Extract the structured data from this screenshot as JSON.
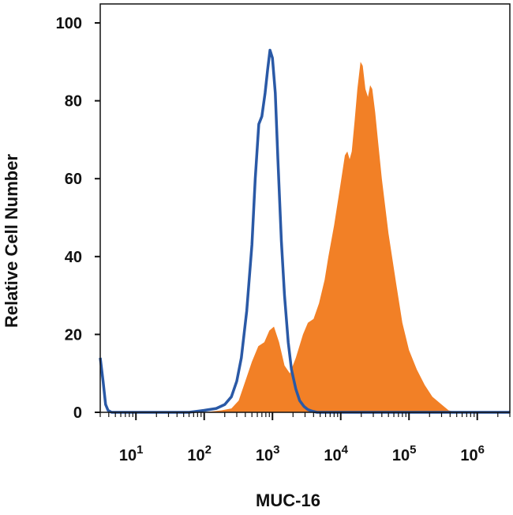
{
  "chart_data": {
    "type": "area",
    "xlabel": "MUC-16",
    "ylabel": "Relative Cell Number",
    "x_scale": "log",
    "xlim": [
      3.0,
      3000000
    ],
    "ylim": [
      0,
      100
    ],
    "x_ticks": [
      {
        "value": 10,
        "base": "10",
        "exp": "1"
      },
      {
        "value": 100,
        "base": "10",
        "exp": "2"
      },
      {
        "value": 1000,
        "base": "10",
        "exp": "3"
      },
      {
        "value": 10000,
        "base": "10",
        "exp": "4"
      },
      {
        "value": 100000,
        "base": "10",
        "exp": "5"
      },
      {
        "value": 1000000,
        "base": "10",
        "exp": "6"
      }
    ],
    "y_ticks": [
      0,
      20,
      40,
      60,
      80,
      100
    ],
    "grid": false,
    "series": [
      {
        "kind": "filled",
        "color": "#f28026",
        "x": [
          3,
          100,
          180,
          250,
          320,
          400,
          500,
          620,
          760,
          900,
          1050,
          1250,
          1500,
          1800,
          2200,
          2800,
          3300,
          4000,
          4800,
          5800,
          6600,
          8000,
          9800,
          11500,
          12500,
          13500,
          14500,
          16000,
          17500,
          19500,
          21000,
          23000,
          25000,
          27000,
          29000,
          32000,
          35000,
          40000,
          50000,
          65000,
          80000,
          100000,
          130000,
          170000,
          220000,
          300000,
          380000,
          500000,
          1000000,
          3000000
        ],
        "y": [
          0,
          0,
          0.5,
          1,
          3,
          8,
          13,
          17,
          18,
          21,
          22,
          18,
          12,
          10,
          14,
          20,
          23,
          24,
          28,
          34,
          40,
          48,
          58,
          66,
          67,
          65,
          67,
          75,
          83,
          90,
          89,
          83,
          81,
          84,
          83,
          77,
          70,
          60,
          46,
          33,
          23,
          16,
          11,
          7,
          4,
          2,
          0.5,
          0,
          0,
          0
        ]
      },
      {
        "kind": "line",
        "color": "#2a59a6",
        "x": [
          3,
          3.3,
          3.6,
          3.9,
          4.4,
          5.5,
          8,
          20,
          60,
          100,
          150,
          200,
          250,
          300,
          350,
          420,
          500,
          560,
          630,
          700,
          780,
          850,
          920,
          1000,
          1100,
          1200,
          1350,
          1500,
          1700,
          1900,
          2200,
          2500,
          2900,
          3300,
          3800,
          4500,
          5500,
          8000,
          3000000
        ],
        "y": [
          14,
          8,
          2,
          0.5,
          0,
          0,
          0,
          0,
          0,
          0.5,
          1,
          2,
          4,
          8,
          14,
          26,
          43,
          60,
          74,
          76,
          82,
          88,
          93,
          91,
          82,
          65,
          44,
          30,
          18,
          11,
          6,
          3,
          1.5,
          0.7,
          0.3,
          0,
          0,
          0,
          0
        ]
      }
    ]
  }
}
